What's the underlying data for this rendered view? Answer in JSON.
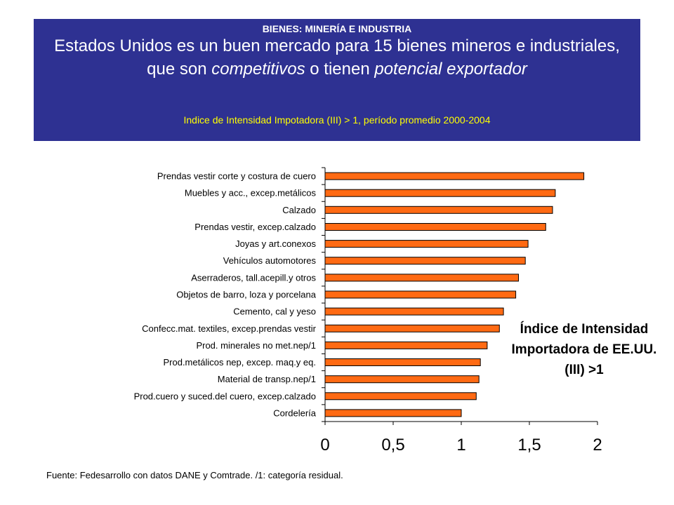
{
  "header": {
    "kicker": "BIENES: MINERÍA E INDUSTRIA",
    "headline_parts": [
      {
        "text": "Estados Unidos es un buen mercado para 15 bienes mineros e industriales, que son ",
        "italic": false
      },
      {
        "text": "competitivos",
        "italic": true
      },
      {
        "text": " o tienen ",
        "italic": false
      },
      {
        "text": "potencial exportador",
        "italic": true
      }
    ],
    "subhead": "Indice de Intensidad Impotadora (III) > 1, período promedio 2000-2004"
  },
  "colors": {
    "banner": "#2e3192",
    "subhead": "#ffff00",
    "bar": "#ff6a13",
    "bar_edge": "#000000"
  },
  "chart_data": {
    "type": "bar",
    "orientation": "horizontal",
    "categories": [
      "Prendas vestir corte y costura de cuero",
      "Muebles y acc., excep.metálicos",
      "Calzado",
      "Prendas vestir, excep.calzado",
      "Joyas y art.conexos",
      "Vehículos automotores",
      "Aserraderos, tall.acepill.y otros",
      "Objetos de barro, loza y porcelana",
      "Cemento, cal y yeso",
      "Confecc.mat. textiles, excep.prendas vestir",
      "Prod. minerales no met.nep/1",
      "Prod.metálicos nep, excep. maq.y eq.",
      "Material de transp.nep/1",
      "Prod.cuero y suced.del cuero, excep.calzado",
      "Cordelería"
    ],
    "values": [
      1.9,
      1.69,
      1.67,
      1.62,
      1.49,
      1.47,
      1.42,
      1.4,
      1.31,
      1.28,
      1.19,
      1.14,
      1.13,
      1.11,
      1.0
    ],
    "xlim": [
      0,
      2
    ],
    "xticks": [
      "0",
      "0,5",
      "1",
      "1,5",
      "2"
    ],
    "annotation": "Índice de Intensidad Importadora de EE.UU. (III) >1",
    "grid": false,
    "legend": "none"
  },
  "footer": {
    "source": "Fuente: Fedesarrollo con datos DANE y Comtrade. /1: categoría residual."
  }
}
